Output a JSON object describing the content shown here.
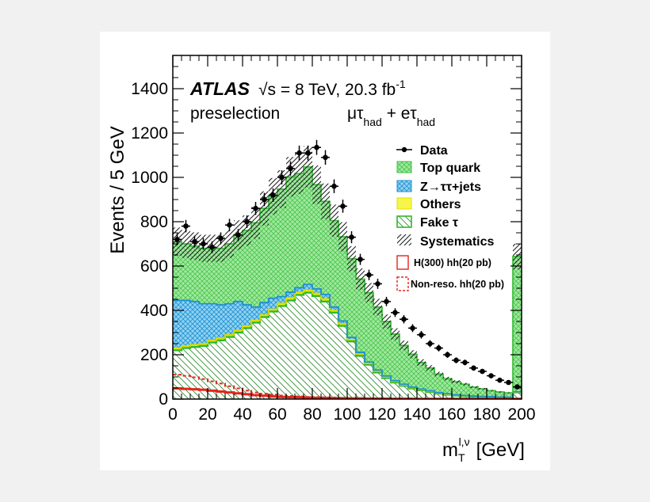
{
  "chart_data": {
    "type": "histogram",
    "experiment": "ATLAS",
    "energy_label": "√s = 8 TeV, 20.3 fb",
    "lumi_exponent": "-1",
    "selection": "preselection",
    "channel": {
      "mu": "μτ",
      "mu_sub": "had",
      "plus": " + eτ",
      "e_sub": "had"
    },
    "ylabel": "Events / 5 GeV",
    "xlabel": {
      "main": "m",
      "sub": "T",
      "sup": "l,ν",
      "unit": "[GeV]"
    },
    "xlim": [
      0,
      200
    ],
    "ylim": [
      0,
      1550
    ],
    "xticks": [
      0,
      20,
      40,
      60,
      80,
      100,
      120,
      140,
      160,
      180,
      200
    ],
    "yticks": [
      0,
      200,
      400,
      600,
      800,
      1000,
      1200,
      1400
    ],
    "bin_edges": [
      0,
      5,
      10,
      15,
      20,
      25,
      30,
      35,
      40,
      45,
      50,
      55,
      60,
      65,
      70,
      75,
      80,
      85,
      90,
      95,
      100,
      105,
      110,
      115,
      120,
      125,
      130,
      135,
      140,
      145,
      150,
      155,
      160,
      165,
      170,
      175,
      180,
      185,
      190,
      195,
      200
    ],
    "stack": [
      {
        "name": "Fake τ",
        "color": "#2eb82e",
        "values": [
          220,
          230,
          235,
          240,
          255,
          265,
          280,
          300,
          320,
          345,
          370,
          395,
          420,
          445,
          470,
          480,
          465,
          440,
          390,
          330,
          260,
          195,
          155,
          120,
          95,
          75,
          60,
          48,
          40,
          32,
          25,
          20,
          16,
          13,
          11,
          9,
          8,
          7,
          6,
          30
        ]
      },
      {
        "name": "Others",
        "color": "#f2f200",
        "values": [
          10,
          10,
          10,
          10,
          10,
          10,
          10,
          10,
          10,
          10,
          10,
          10,
          12,
          12,
          12,
          12,
          12,
          12,
          10,
          10,
          8,
          8,
          6,
          6,
          5,
          5,
          4,
          4,
          3,
          3,
          2,
          2,
          2,
          2,
          2,
          2,
          2,
          1,
          1,
          2
        ]
      },
      {
        "name": "Z→ττ+jets",
        "color": "#2a9fd8",
        "values": [
          215,
          205,
          195,
          180,
          165,
          150,
          140,
          130,
          95,
          60,
          55,
          50,
          30,
          25,
          20,
          25,
          20,
          20,
          15,
          12,
          10,
          8,
          6,
          5,
          4,
          3,
          3,
          2,
          2,
          2,
          2,
          2,
          1,
          1,
          1,
          1,
          1,
          1,
          1,
          1
        ]
      },
      {
        "name": "Top quark",
        "color": "#5ddc5d",
        "values": [
          265,
          255,
          250,
          250,
          250,
          255,
          270,
          300,
          335,
          380,
          425,
          460,
          485,
          520,
          515,
          530,
          470,
          420,
          390,
          380,
          355,
          330,
          313,
          284,
          246,
          210,
          175,
          148,
          120,
          103,
          84,
          68,
          59,
          51,
          40,
          34,
          27,
          23,
          20,
          610
        ]
      }
    ],
    "data_points": [
      720,
      780,
      710,
      700,
      685,
      725,
      785,
      740,
      800,
      860,
      900,
      920,
      1000,
      1040,
      1110,
      1110,
      1135,
      1090,
      960,
      870,
      730,
      630,
      560,
      520,
      440,
      390,
      360,
      320,
      290,
      250,
      230,
      200,
      175,
      165,
      140,
      125,
      105,
      85,
      75,
      55
    ],
    "signals": [
      {
        "name": "H(300) hh(20 pb)",
        "style": "solid",
        "color": "#e4251b",
        "values": [
          48,
          46,
          44,
          42,
          38,
          34,
          30,
          26,
          22,
          18,
          15,
          12,
          10,
          9,
          8,
          7,
          6,
          5,
          4,
          4,
          3,
          3,
          2,
          2,
          2,
          1,
          1,
          1,
          1,
          1,
          1,
          1,
          1,
          1,
          1,
          1,
          1,
          1,
          1,
          1
        ]
      },
      {
        "name": "Non-reso. hh(20 pb)",
        "style": "dashed",
        "color": "#e4251b",
        "values": [
          110,
          105,
          98,
          90,
          80,
          70,
          58,
          48,
          38,
          30,
          24,
          20,
          16,
          14,
          12,
          10,
          9,
          8,
          7,
          6,
          5,
          5,
          4,
          4,
          3,
          3,
          3,
          3,
          2,
          2,
          2,
          2,
          2,
          2,
          2,
          2,
          2,
          2,
          2,
          2
        ]
      }
    ],
    "legend": {
      "data": "Data",
      "top": "Top quark",
      "ztt": "Z→ττ+jets",
      "others": "Others",
      "fake": "Fake  τ",
      "syst": "Systematics",
      "h300": "H(300) hh(20 pb)",
      "nonreso": "Non-reso. hh(20 pb)"
    },
    "systematics_fraction": 0.09,
    "grid": false,
    "legend_position": "top-right"
  }
}
